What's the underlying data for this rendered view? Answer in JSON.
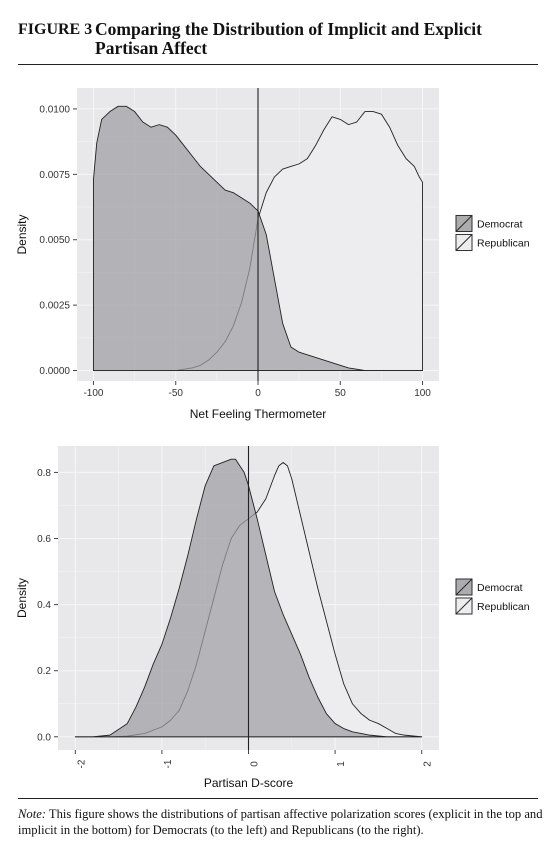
{
  "figure": {
    "number": "FIGURE 3",
    "title": "Comparing the Distribution of Implicit and Explicit Partisan Affect"
  },
  "note": {
    "label": "Note:",
    "text": " This figure shows the distributions of partisan affective polarization scores (explicit in the top and implicit in the bottom) for Democrats (to the left) and Republicans (to the right)."
  },
  "colors": {
    "democrat": "#9e9ea3",
    "republican": "#ededef",
    "panel": "#e8e8ea",
    "grid": "#f6f6f7",
    "line": "#222222"
  },
  "chart_data": [
    {
      "type": "area",
      "xlabel": "Net Feeling Thermometer",
      "ylabel": "Density",
      "xlim": [
        -110,
        110
      ],
      "ylim": [
        -0.0004,
        0.0108
      ],
      "xticks": [
        -100,
        -50,
        0,
        50,
        100
      ],
      "yticks": [
        0.0,
        0.0025,
        0.005,
        0.0075,
        0.01
      ],
      "yticklabels": [
        "0.0000",
        "0.0025",
        "0.0050",
        "0.0075",
        "0.0100"
      ],
      "vline": 0,
      "grid": true,
      "legend": {
        "position": "right",
        "entries": [
          "Democrat",
          "Republican"
        ]
      },
      "series": [
        {
          "name": "Democrat",
          "x": [
            -100,
            -100,
            -98,
            -95,
            -90,
            -85,
            -80,
            -75,
            -70,
            -65,
            -60,
            -55,
            -50,
            -45,
            -40,
            -35,
            -30,
            -25,
            -20,
            -15,
            -10,
            -5,
            0,
            5,
            10,
            15,
            20,
            25,
            30,
            35,
            40,
            45,
            50,
            55,
            60,
            65,
            70,
            75,
            80,
            85,
            90,
            95,
            100
          ],
          "y": [
            0.0,
            0.0073,
            0.0087,
            0.0096,
            0.0099,
            0.0101,
            0.0101,
            0.0099,
            0.0095,
            0.0093,
            0.0094,
            0.0093,
            0.009,
            0.0086,
            0.0082,
            0.0078,
            0.0075,
            0.0072,
            0.0069,
            0.0068,
            0.0066,
            0.0064,
            0.0061,
            0.0052,
            0.0035,
            0.0018,
            0.0009,
            0.0007,
            0.0006,
            0.0005,
            0.0004,
            0.0003,
            0.0002,
            0.0001,
            5e-05,
            0.0,
            0.0,
            0.0,
            0.0,
            0.0,
            0.0,
            0.0,
            0.0
          ]
        },
        {
          "name": "Republican",
          "x": [
            -100,
            -90,
            -80,
            -70,
            -60,
            -50,
            -45,
            -40,
            -35,
            -30,
            -25,
            -20,
            -15,
            -10,
            -5,
            0,
            5,
            10,
            15,
            20,
            25,
            30,
            35,
            40,
            45,
            50,
            55,
            60,
            65,
            70,
            75,
            80,
            85,
            90,
            95,
            98,
            100,
            100
          ],
          "y": [
            0.0,
            0.0,
            0.0,
            0.0,
            0.0,
            0.0,
            5e-05,
            0.0001,
            0.0002,
            0.0004,
            0.0007,
            0.0011,
            0.0017,
            0.0026,
            0.0039,
            0.0058,
            0.0068,
            0.0074,
            0.0077,
            0.0078,
            0.0079,
            0.0081,
            0.0086,
            0.0092,
            0.0097,
            0.0096,
            0.0094,
            0.0095,
            0.0099,
            0.0099,
            0.0098,
            0.0093,
            0.0086,
            0.0081,
            0.0078,
            0.0074,
            0.0072,
            0.0
          ]
        }
      ]
    },
    {
      "type": "area",
      "xlabel": "Partisan D-score",
      "ylabel": "Density",
      "xlim": [
        -2.2,
        2.2
      ],
      "ylim": [
        -0.04,
        0.88
      ],
      "xticks": [
        -2,
        -1,
        0,
        1,
        2
      ],
      "yticks": [
        0.0,
        0.2,
        0.4,
        0.6,
        0.8
      ],
      "yticklabels": [
        "0.0",
        "0.2",
        "0.4",
        "0.6",
        "0.8"
      ],
      "vline": 0,
      "grid": true,
      "legend": {
        "position": "right",
        "entries": [
          "Democrat",
          "Republican"
        ]
      },
      "series": [
        {
          "name": "Democrat",
          "x": [
            -2.0,
            -1.8,
            -1.6,
            -1.4,
            -1.3,
            -1.2,
            -1.1,
            -1.0,
            -0.9,
            -0.8,
            -0.7,
            -0.6,
            -0.5,
            -0.4,
            -0.3,
            -0.2,
            -0.15,
            -0.1,
            -0.05,
            0.0,
            0.1,
            0.2,
            0.3,
            0.4,
            0.5,
            0.6,
            0.7,
            0.8,
            0.9,
            1.0,
            1.1,
            1.2,
            1.3,
            1.4,
            1.6,
            1.8,
            2.0
          ],
          "y": [
            0.0,
            0.0,
            0.005,
            0.04,
            0.09,
            0.15,
            0.22,
            0.28,
            0.36,
            0.45,
            0.55,
            0.66,
            0.76,
            0.82,
            0.83,
            0.84,
            0.84,
            0.82,
            0.8,
            0.76,
            0.66,
            0.55,
            0.44,
            0.37,
            0.31,
            0.25,
            0.18,
            0.12,
            0.07,
            0.04,
            0.025,
            0.015,
            0.01,
            0.005,
            0.0,
            0.0,
            0.0
          ]
        },
        {
          "name": "Republican",
          "x": [
            -2.0,
            -1.6,
            -1.4,
            -1.2,
            -1.0,
            -0.9,
            -0.8,
            -0.7,
            -0.6,
            -0.5,
            -0.4,
            -0.3,
            -0.2,
            -0.1,
            0.0,
            0.1,
            0.2,
            0.3,
            0.35,
            0.4,
            0.45,
            0.5,
            0.6,
            0.7,
            0.8,
            0.9,
            1.0,
            1.1,
            1.2,
            1.3,
            1.4,
            1.5,
            1.6,
            1.7,
            1.8,
            2.0
          ],
          "y": [
            0.0,
            0.0,
            0.002,
            0.01,
            0.03,
            0.05,
            0.08,
            0.14,
            0.22,
            0.32,
            0.42,
            0.52,
            0.6,
            0.64,
            0.66,
            0.68,
            0.72,
            0.79,
            0.82,
            0.83,
            0.82,
            0.78,
            0.67,
            0.56,
            0.45,
            0.35,
            0.25,
            0.16,
            0.1,
            0.07,
            0.05,
            0.04,
            0.025,
            0.01,
            0.005,
            0.0
          ]
        }
      ]
    }
  ]
}
